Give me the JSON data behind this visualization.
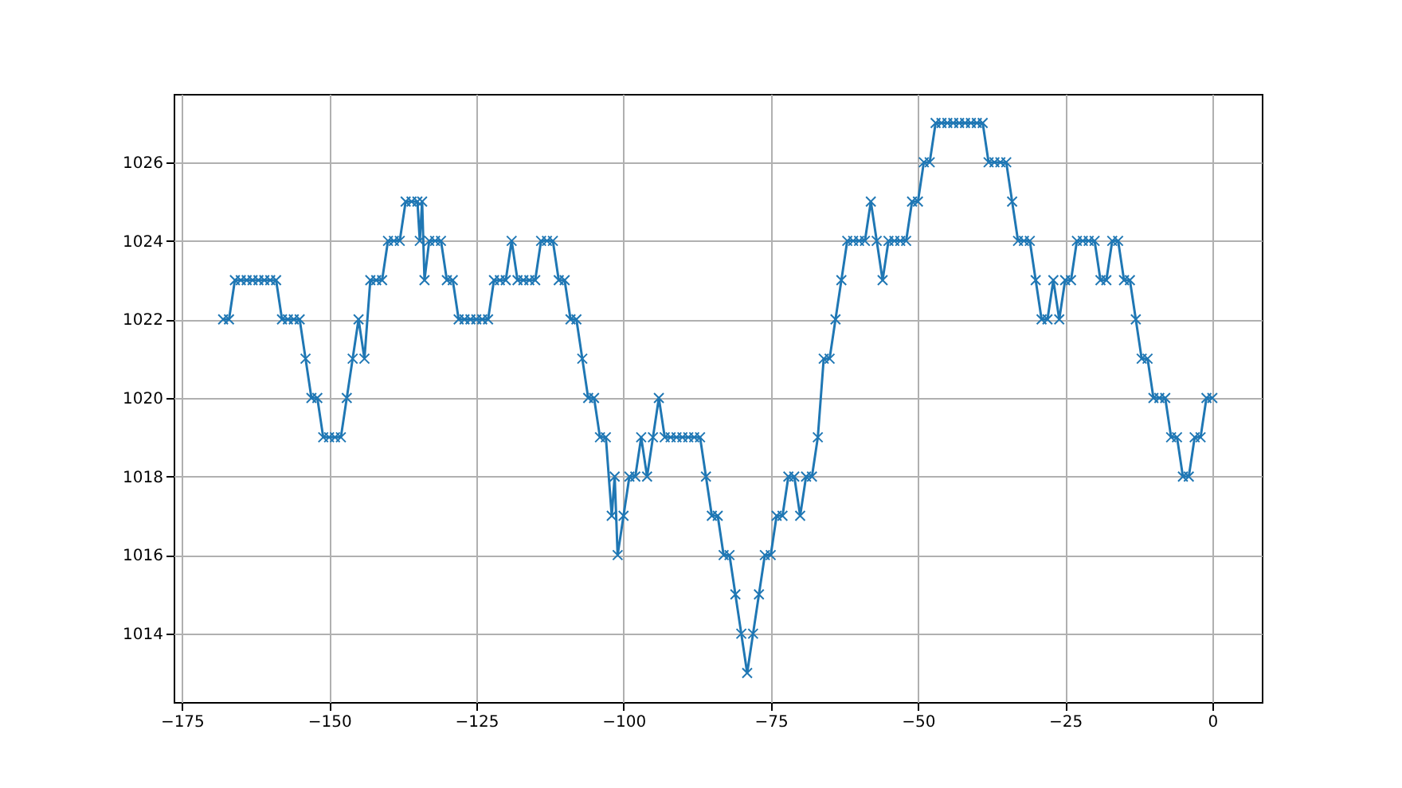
{
  "chart_data": {
    "type": "line",
    "marker": "cross",
    "grid": true,
    "xlim": [
      -176.4,
      8.4
    ],
    "xticks": [
      -175,
      -150,
      -125,
      -100,
      -75,
      -50,
      -25,
      0
    ],
    "ylim": [
      1012.26,
      1027.74
    ],
    "yticks": [
      1014,
      1016,
      1018,
      1020,
      1022,
      1024,
      1026
    ],
    "series": [
      {
        "color": "#1f77b4",
        "x": [
          -168,
          -167,
          -166,
          -165,
          -164,
          -163,
          -162,
          -161,
          -160,
          -159,
          -158,
          -157,
          -156,
          -155,
          -154,
          -153,
          -152,
          -151,
          -150,
          -149,
          -148,
          -147,
          -146,
          -145,
          -144,
          -143,
          -142,
          -141,
          -140,
          -139,
          -138,
          -137,
          -136,
          -135,
          -134.6,
          -134.2,
          -133.8,
          -133,
          -132,
          -131,
          -130,
          -129,
          -128,
          -127,
          -126,
          -125,
          -124,
          -123,
          -122,
          -121,
          -120,
          -119,
          -118,
          -117,
          -116,
          -115,
          -114,
          -113,
          -112,
          -111,
          -110,
          -109,
          -108,
          -107,
          -106,
          -105,
          -104,
          -103,
          -102,
          -101.5,
          -101,
          -100,
          -99,
          -98,
          -97,
          -96,
          -95,
          -94,
          -93,
          -92,
          -91,
          -90,
          -89,
          -88,
          -87,
          -86,
          -85,
          -84,
          -83,
          -82,
          -81,
          -80,
          -79,
          -78,
          -77,
          -76,
          -75,
          -74,
          -73,
          -72,
          -71,
          -70,
          -69,
          -68,
          -67,
          -66,
          -65,
          -64,
          -63,
          -62,
          -61,
          -60,
          -59,
          -58,
          -57,
          -56,
          -55,
          -54,
          -53,
          -52,
          -51,
          -50,
          -49,
          -48,
          -47,
          -46,
          -45,
          -44,
          -43,
          -42,
          -41,
          -40,
          -39,
          -38,
          -37,
          -36,
          -35,
          -34,
          -33,
          -32,
          -31,
          -30,
          -29,
          -28,
          -27,
          -26,
          -25,
          -24,
          -23,
          -22,
          -21,
          -20,
          -19,
          -18,
          -17,
          -16,
          -15,
          -14,
          -13,
          -12,
          -11,
          -10,
          -9,
          -8,
          -7,
          -6,
          -5,
          -4,
          -3,
          -2,
          -1,
          0
        ],
        "values": [
          1022,
          1022,
          1023,
          1023,
          1023,
          1023,
          1023,
          1023,
          1023,
          1023,
          1022,
          1022,
          1022,
          1022,
          1021,
          1020,
          1020,
          1019,
          1019,
          1019,
          1019,
          1020,
          1021,
          1022,
          1021,
          1023,
          1023,
          1023,
          1024,
          1024,
          1024,
          1025,
          1025,
          1025,
          1024,
          1025,
          1023,
          1024,
          1024,
          1024,
          1023,
          1023,
          1022,
          1022,
          1022,
          1022,
          1022,
          1022,
          1023,
          1023,
          1023,
          1024,
          1023,
          1023,
          1023,
          1023,
          1024,
          1024,
          1024,
          1023,
          1023,
          1022,
          1022,
          1021,
          1020,
          1020,
          1019,
          1019,
          1017,
          1018,
          1016,
          1017,
          1018,
          1018,
          1019,
          1018,
          1019,
          1020,
          1019,
          1019,
          1019,
          1019,
          1019,
          1019,
          1019,
          1018,
          1017,
          1017,
          1016,
          1016,
          1015,
          1014,
          1013,
          1014,
          1015,
          1016,
          1016,
          1017,
          1017,
          1018,
          1018,
          1017,
          1018,
          1018,
          1019,
          1021,
          1021,
          1022,
          1023,
          1024,
          1024,
          1024,
          1024,
          1025,
          1024,
          1023,
          1024,
          1024,
          1024,
          1024,
          1025,
          1025,
          1026,
          1026,
          1027,
          1027,
          1027,
          1027,
          1027,
          1027,
          1027,
          1027,
          1027,
          1026,
          1026,
          1026,
          1026,
          1025,
          1024,
          1024,
          1024,
          1023,
          1022,
          1022,
          1023,
          1022,
          1023,
          1023,
          1024,
          1024,
          1024,
          1024,
          1023,
          1023,
          1024,
          1024,
          1023,
          1023,
          1022,
          1021,
          1021,
          1020,
          1020,
          1020,
          1019,
          1019,
          1018,
          1018,
          1019,
          1019,
          1020,
          1020
        ]
      }
    ]
  }
}
